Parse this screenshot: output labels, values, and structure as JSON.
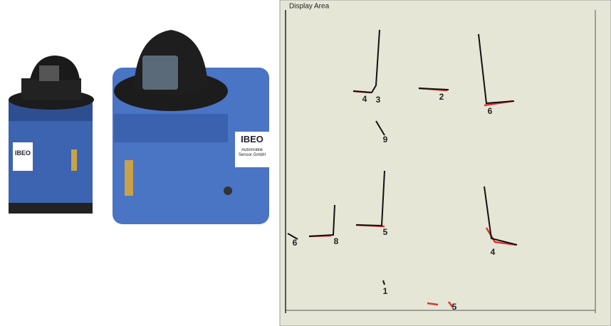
{
  "scanners": [
    {
      "brand": "IBEO"
    },
    {
      "brand": "IBEO",
      "caption": "Automobile Sensor GmbH"
    }
  ],
  "display": {
    "title": "Display Area",
    "objects": [
      {
        "label": "4"
      },
      {
        "label": "3"
      },
      {
        "label": "2"
      },
      {
        "label": "6"
      },
      {
        "label": "9"
      },
      {
        "label": "6"
      },
      {
        "label": "8"
      },
      {
        "label": "5"
      },
      {
        "label": "4"
      },
      {
        "label": "1"
      },
      {
        "label": "5"
      }
    ]
  }
}
